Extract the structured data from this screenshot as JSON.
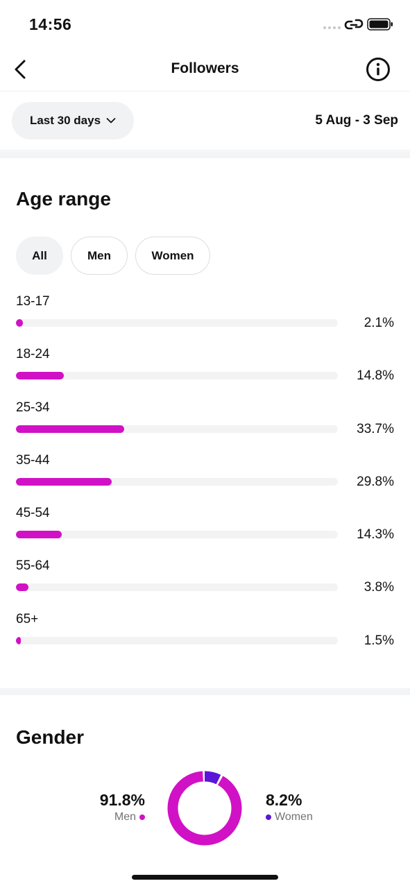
{
  "status_bar": {
    "time": "14:56"
  },
  "header": {
    "title": "Followers",
    "back_icon": "chevron-left-icon",
    "info_icon": "info-icon"
  },
  "range": {
    "selector_label": "Last 30 days",
    "dates": "5 Aug - 3 Sep"
  },
  "age_section": {
    "title": "Age range",
    "filters": [
      {
        "label": "All",
        "active": true
      },
      {
        "label": "Men",
        "active": false
      },
      {
        "label": "Women",
        "active": false
      }
    ],
    "rows": [
      {
        "label": "13-17",
        "pct_text": "2.1%",
        "fill_percent": 2.1
      },
      {
        "label": "18-24",
        "pct_text": "14.8%",
        "fill_percent": 14.8
      },
      {
        "label": "25-34",
        "pct_text": "33.7%",
        "fill_percent": 33.7
      },
      {
        "label": "35-44",
        "pct_text": "29.8%",
        "fill_percent": 29.8
      },
      {
        "label": "45-54",
        "pct_text": "14.3%",
        "fill_percent": 14.3
      },
      {
        "label": "55-64",
        "pct_text": "3.8%",
        "fill_percent": 3.8
      },
      {
        "label": "65+",
        "pct_text": "1.5%",
        "fill_percent": 1.5
      }
    ]
  },
  "gender_section": {
    "title": "Gender",
    "men": {
      "value": "91.8%",
      "label": "Men",
      "percent": 91.8,
      "color": "#d111c6"
    },
    "women": {
      "value": "8.2%",
      "label": "Women",
      "percent": 8.2,
      "color": "#5b16d8"
    }
  },
  "colors": {
    "accent": "#d111c6",
    "secondary": "#5b16d8",
    "track": "#f3f3f4"
  }
}
